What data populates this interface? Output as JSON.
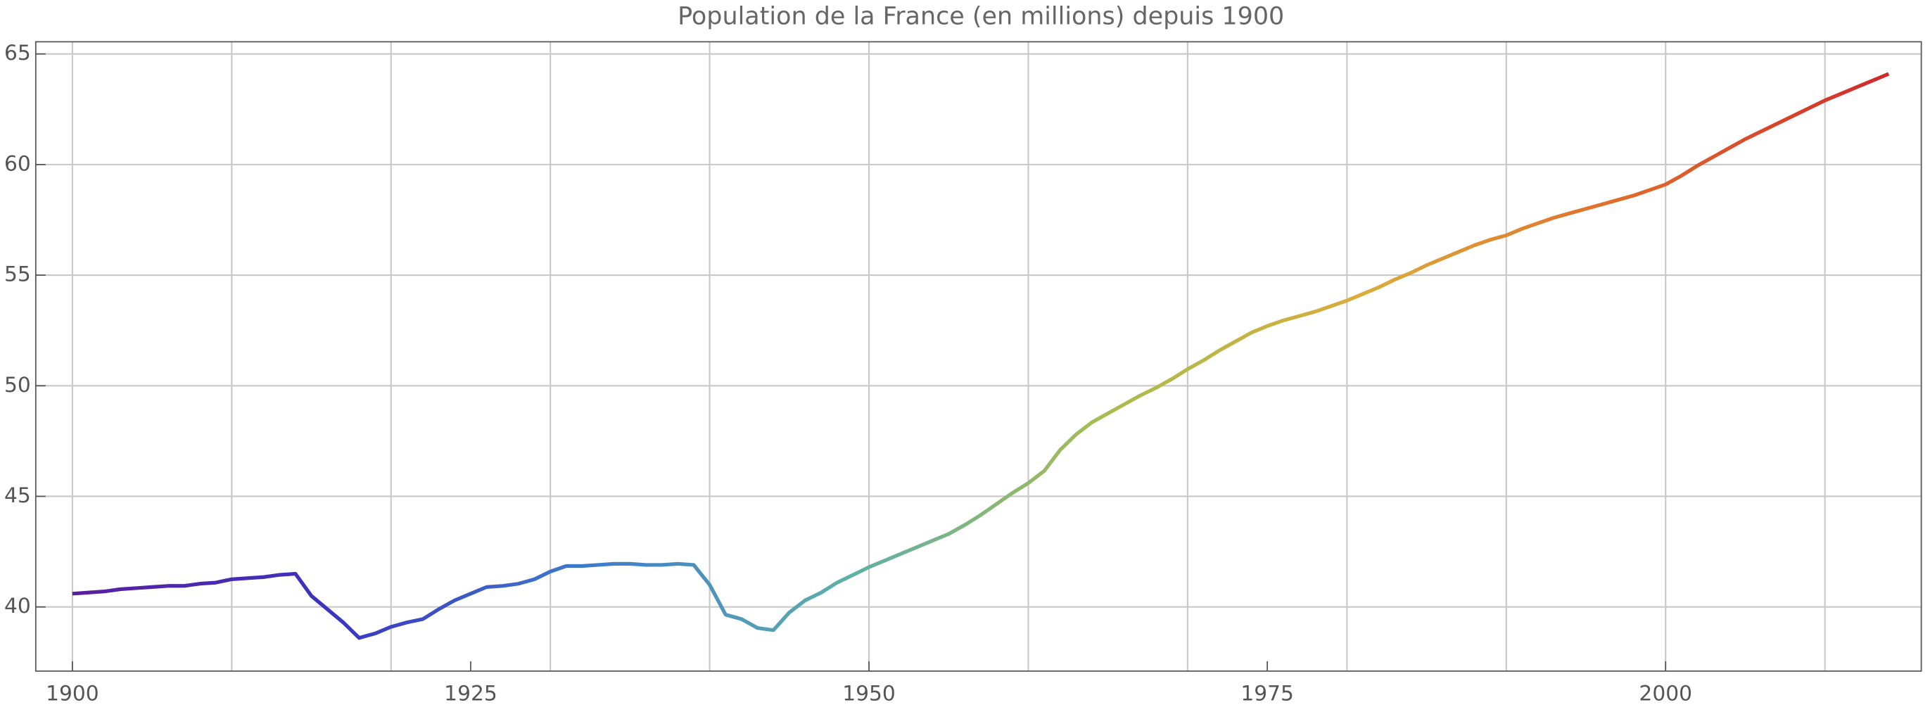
{
  "chart_data": {
    "type": "line",
    "title": "Population de la France (en millions) depuis 1900",
    "x": [
      1900,
      1901,
      1902,
      1903,
      1904,
      1905,
      1906,
      1907,
      1908,
      1909,
      1910,
      1911,
      1912,
      1913,
      1914,
      1915,
      1916,
      1917,
      1918,
      1919,
      1920,
      1921,
      1922,
      1923,
      1924,
      1925,
      1926,
      1927,
      1928,
      1929,
      1930,
      1931,
      1932,
      1933,
      1934,
      1935,
      1936,
      1937,
      1938,
      1939,
      1940,
      1941,
      1942,
      1943,
      1944,
      1945,
      1946,
      1947,
      1948,
      1949,
      1950,
      1951,
      1952,
      1953,
      1954,
      1955,
      1956,
      1957,
      1958,
      1959,
      1960,
      1961,
      1962,
      1963,
      1964,
      1965,
      1966,
      1967,
      1968,
      1969,
      1970,
      1971,
      1972,
      1973,
      1974,
      1975,
      1976,
      1977,
      1978,
      1979,
      1980,
      1981,
      1982,
      1983,
      1984,
      1985,
      1986,
      1987,
      1988,
      1989,
      1990,
      1991,
      1992,
      1993,
      1994,
      1995,
      1996,
      1997,
      1998,
      1999,
      2000,
      2001,
      2002,
      2003,
      2004,
      2005,
      2006,
      2007,
      2008,
      2009,
      2010,
      2011,
      2012,
      2013,
      2014
    ],
    "values": [
      40.6,
      40.65,
      40.7,
      40.8,
      40.85,
      40.9,
      40.95,
      40.95,
      41.05,
      41.1,
      41.25,
      41.3,
      41.35,
      41.45,
      41.5,
      40.5,
      39.9,
      39.3,
      38.6,
      38.8,
      39.1,
      39.3,
      39.45,
      39.9,
      40.3,
      40.6,
      40.9,
      40.95,
      41.05,
      41.25,
      41.6,
      41.85,
      41.85,
      41.9,
      41.95,
      41.95,
      41.9,
      41.9,
      41.95,
      41.9,
      41.0,
      39.65,
      39.45,
      39.05,
      38.95,
      39.75,
      40.3,
      40.65,
      41.1,
      41.45,
      41.8,
      42.1,
      42.4,
      42.7,
      43.0,
      43.3,
      43.7,
      44.15,
      44.65,
      45.15,
      45.6,
      46.15,
      47.1,
      47.8,
      48.35,
      48.75,
      49.15,
      49.55,
      49.9,
      50.3,
      50.75,
      51.15,
      51.6,
      52.0,
      52.4,
      52.7,
      52.95,
      53.15,
      53.35,
      53.6,
      53.85,
      54.15,
      54.45,
      54.8,
      55.1,
      55.45,
      55.75,
      56.05,
      56.35,
      56.6,
      56.8,
      57.1,
      57.35,
      57.6,
      57.8,
      58.0,
      58.2,
      58.4,
      58.6,
      58.85,
      59.1,
      59.5,
      59.95,
      60.35,
      60.75,
      61.15,
      61.5,
      61.85,
      62.2,
      62.55,
      62.9,
      63.2,
      63.5,
      63.8,
      64.1
    ],
    "line_gradient": [
      "#5a1e9e",
      "#3b34c0",
      "#3e7ccc",
      "#5fb0a8",
      "#a8bd4e",
      "#dcab3a",
      "#e06a2a",
      "#d2282a"
    ],
    "xlim": [
      1897.7,
      2016.05
    ],
    "ylim": [
      37.1,
      65.55
    ],
    "xticks": [
      1900,
      1925,
      1950,
      1975,
      2000
    ],
    "xgrid": [
      1900,
      1910,
      1920,
      1930,
      1940,
      1950,
      1960,
      1970,
      1980,
      1990,
      2000,
      2010
    ],
    "yticks": [
      40,
      45,
      50,
      55,
      60,
      65
    ],
    "grid": true
  }
}
